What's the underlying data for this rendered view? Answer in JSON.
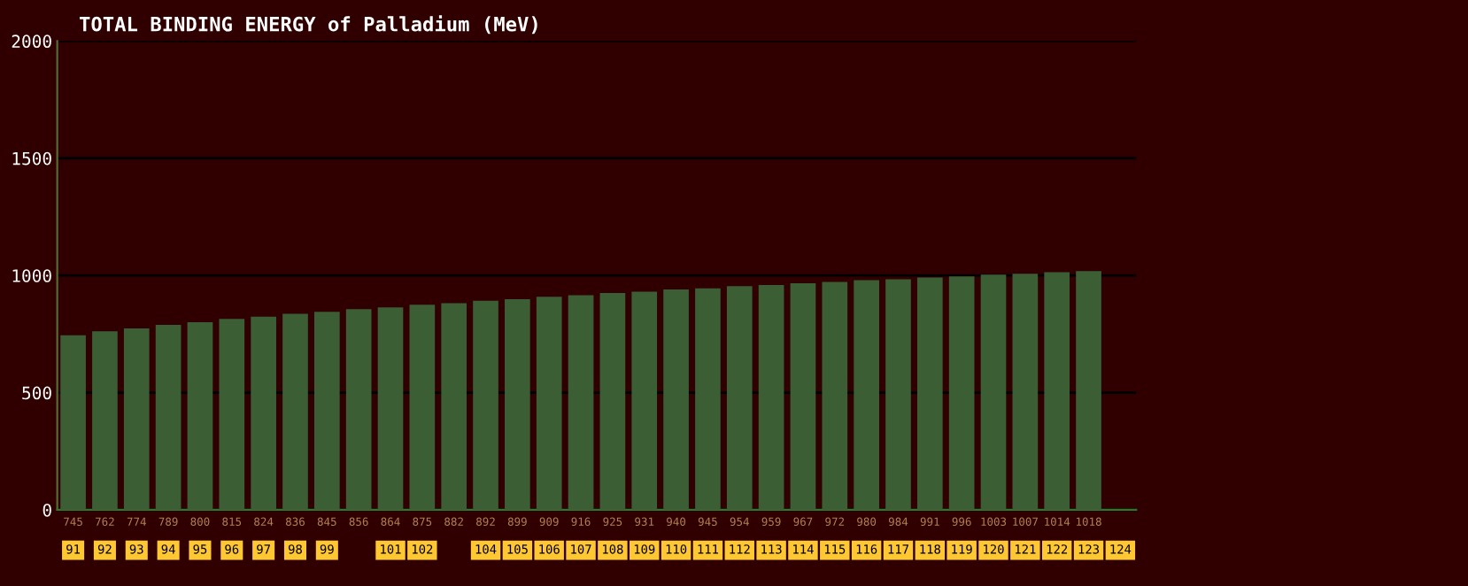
{
  "chart_data": {
    "type": "bar",
    "title": "TOTAL BINDING ENERGY of Palladium (MeV)",
    "categories": [
      "91",
      "92",
      "93",
      "94",
      "95",
      "96",
      "97",
      "98",
      "99",
      null,
      "101",
      "102",
      null,
      "104",
      "105",
      "106",
      "107",
      "108",
      "109",
      "110",
      "111",
      "112",
      "113",
      "114",
      "115",
      "116",
      "117",
      "118",
      "119",
      "120",
      "121",
      "122",
      "123",
      "124"
    ],
    "values": [
      745,
      762,
      774,
      789,
      800,
      815,
      824,
      836,
      845,
      856,
      864,
      875,
      882,
      892,
      899,
      909,
      916,
      925,
      931,
      940,
      945,
      954,
      959,
      967,
      972,
      980,
      984,
      991,
      996,
      1003,
      1007,
      1014,
      1018,
      null
    ],
    "color": "#3b5e35",
    "data_labels": true,
    "ylim": [
      0,
      2000
    ],
    "yticks": [
      0,
      500,
      1000,
      1500,
      2000
    ],
    "grid": "y",
    "legend": false
  }
}
